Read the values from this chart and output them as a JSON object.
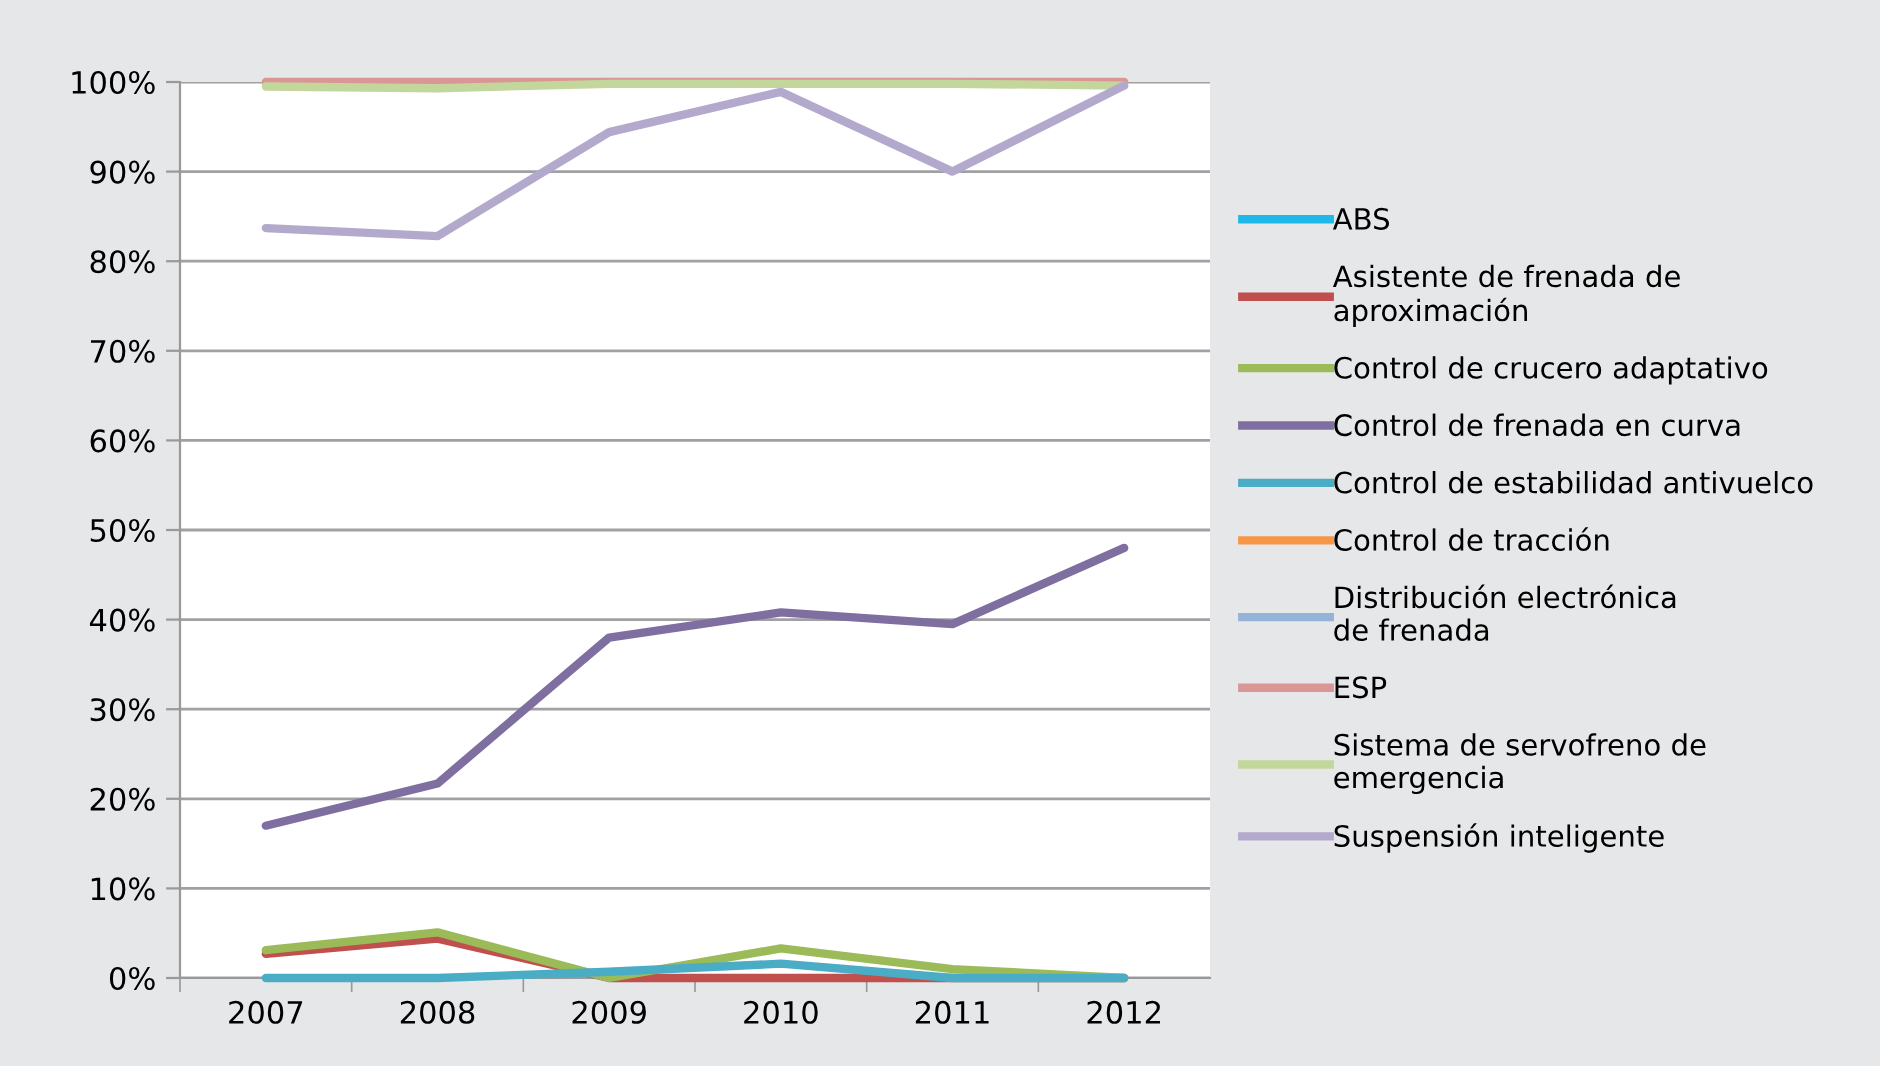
{
  "chart_data": {
    "type": "line",
    "categories": [
      "2007",
      "2008",
      "2009",
      "2010",
      "2011",
      "2012"
    ],
    "ylim": [
      0,
      100
    ],
    "yticks": [
      {
        "value": 0,
        "label": "0%"
      },
      {
        "value": 10,
        "label": "10%"
      },
      {
        "value": 20,
        "label": "20%"
      },
      {
        "value": 30,
        "label": "30%"
      },
      {
        "value": 40,
        "label": "40%"
      },
      {
        "value": 50,
        "label": "50%"
      },
      {
        "value": 60,
        "label": "60%"
      },
      {
        "value": 70,
        "label": "70%"
      },
      {
        "value": 80,
        "label": "80%"
      },
      {
        "value": 90,
        "label": "90%"
      },
      {
        "value": 100,
        "label": "100%"
      }
    ],
    "grid": "y",
    "legend": "right",
    "marker": "none",
    "line_style": "solid",
    "series": [
      {
        "name": "ABS",
        "color": "#1fb8e8",
        "values": [
          null,
          null,
          null,
          null,
          null,
          null
        ]
      },
      {
        "name": "Asistente de frenada de aproximación",
        "color": "#c0504d",
        "values": [
          2.7,
          4.4,
          0,
          0,
          0,
          0
        ]
      },
      {
        "name": "Control de crucero adaptativo",
        "color": "#9bbb59",
        "values": [
          3.1,
          5.1,
          0,
          3.3,
          1.0,
          0
        ]
      },
      {
        "name": "Control de frenada en curva",
        "color": "#7f6fa0",
        "values": [
          17,
          21.7,
          38,
          40.8,
          39.5,
          48
        ]
      },
      {
        "name": "Control de estabilidad antivuelco",
        "color": "#4bacc6",
        "values": [
          0,
          0,
          0.7,
          1.6,
          0,
          0
        ]
      },
      {
        "name": "Control de tracción",
        "color": "#f79646",
        "values": [
          null,
          null,
          null,
          null,
          null,
          null
        ]
      },
      {
        "name": "Distribución electrónica de frenada",
        "color": "#95b3d7",
        "values": [
          null,
          null,
          null,
          null,
          null,
          null
        ]
      },
      {
        "name": "ESP",
        "color": "#d99694",
        "values": [
          100,
          100,
          100,
          100,
          100,
          100
        ]
      },
      {
        "name": "Sistema de servofreno de emergencia",
        "color": "#c3d69b",
        "values": [
          99.5,
          99.3,
          99.8,
          99.8,
          99.8,
          99.6
        ]
      },
      {
        "name": "Suspensión inteligente",
        "color": "#b3a9cc",
        "values": [
          83.7,
          82.8,
          94.4,
          98.9,
          90,
          99.6
        ]
      }
    ]
  }
}
